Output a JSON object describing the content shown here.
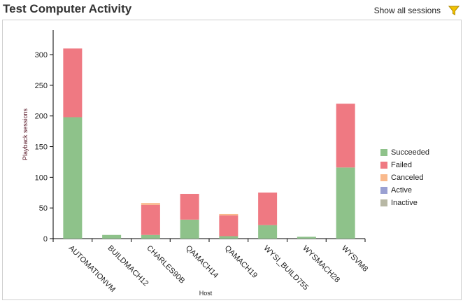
{
  "header": {
    "title": "Test Computer Activity",
    "show_all_label": "Show all sessions"
  },
  "colors": {
    "Succeeded": "#8ec28a",
    "Failed": "#ef7982",
    "Canceled": "#f9b98c",
    "Active": "#9aa0d2",
    "Inactive": "#b7b7a4"
  },
  "chart_data": {
    "type": "bar",
    "stacked": true,
    "categories": [
      "AUTOMATIONVM",
      "BUILDMACH12",
      "CHARLES90B",
      "QAMACH14",
      "QAMACH19",
      "WYSI_BUILD755",
      "WYSMACH28",
      "WYSVM8"
    ],
    "series": [
      {
        "name": "Succeeded",
        "values": [
          198,
          6,
          6,
          31,
          4,
          22,
          3,
          116
        ]
      },
      {
        "name": "Failed",
        "values": [
          112,
          0,
          49,
          42,
          34,
          53,
          0,
          104
        ]
      },
      {
        "name": "Canceled",
        "values": [
          0,
          0,
          3,
          0,
          2,
          0,
          0,
          0
        ]
      },
      {
        "name": "Active",
        "values": [
          0,
          0,
          0,
          0,
          0,
          0,
          0,
          0
        ]
      },
      {
        "name": "Inactive",
        "values": [
          0,
          0,
          0,
          0,
          0,
          0,
          0,
          0
        ]
      }
    ],
    "xlabel": "Host",
    "ylabel": "Playback sessions",
    "ylim": [
      0,
      350
    ],
    "yticks": [
      0,
      50,
      100,
      150,
      200,
      250,
      300
    ],
    "grid": false,
    "legend_position": "right"
  }
}
